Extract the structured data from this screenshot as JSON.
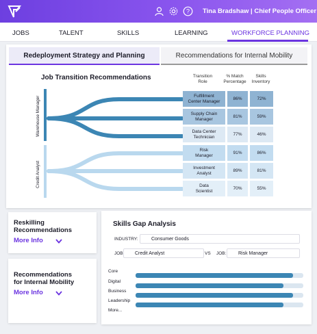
{
  "header": {
    "user": "Tina Bradshaw | Chief People Officer",
    "icons": [
      "logo-icon",
      "user-icon",
      "gear-icon",
      "help-icon"
    ]
  },
  "nav": {
    "items": [
      "JOBS",
      "TALENT",
      "SKILLS",
      "LEARNING",
      "WORKFORCE PLANNING"
    ],
    "active": "WORKFORCE PLANNING"
  },
  "subtabs": [
    "Redeployment Strategy and Planning",
    "Recommendations for Internal Mobility"
  ],
  "job_transition": {
    "title": "Job Transition Recommendations",
    "columns": {
      "role": "Transition\nRole",
      "match": "% Match\nPercentage",
      "skills": "Skills\nInventory"
    },
    "groups": [
      {
        "source": "Warehouse Manager",
        "rows": [
          {
            "role": "Fulfillment\nCenter Manager",
            "match": "86%",
            "skills": "72%"
          },
          {
            "role": "Supply Chain\nManager",
            "match": "81%",
            "skills": "59%"
          },
          {
            "role": "Data Center\nTechnician",
            "match": "77%",
            "skills": "46%"
          }
        ]
      },
      {
        "source": "Credit Analyst",
        "rows": [
          {
            "role": "Risk\nManager",
            "match": "91%",
            "skills": "86%"
          },
          {
            "role": "Investment\nAnalyst",
            "match": "89%",
            "skills": "81%"
          },
          {
            "role": "Data\nScientist",
            "match": "70%",
            "skills": "55%"
          }
        ]
      }
    ]
  },
  "reskilling": {
    "title": "Reskilling\nRecommendations",
    "link": "More Info"
  },
  "mobility": {
    "title": "Recommendations\nfor Internal Mobility",
    "link": "More Info"
  },
  "skills_gap": {
    "title": "Skills Gap Analysis",
    "industry_label": "INDUSTRY:",
    "industry_value": "Consumer Goods",
    "job_label_1": "JOB:",
    "job_value_1": "Credit Analyst",
    "vs_label": "VS",
    "job_label_2": "JOB:",
    "job_value_2": "Risk Manager",
    "skills": [
      {
        "name": "Core",
        "fill": 0.94
      },
      {
        "name": "Digital",
        "fill": 0.88
      },
      {
        "name": "Business",
        "fill": 0.94
      },
      {
        "name": "Leadership",
        "fill": 0.88
      }
    ],
    "more_label": "More..."
  },
  "colors": {
    "accent": "#6b34e0",
    "sankey_dark": "#3c86b4",
    "sankey_light": "#b9d8ee",
    "cell_dark": "#8fb3d2",
    "cell_light": "#cfe3f3"
  }
}
